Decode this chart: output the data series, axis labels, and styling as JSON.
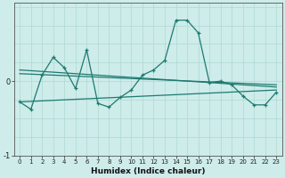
{
  "title": "",
  "xlabel": "Humidex (Indice chaleur)",
  "ylabel": "",
  "background_color": "#cdecea",
  "line_color": "#1e7a70",
  "grid_color": "#afd8d3",
  "x_values": [
    0,
    1,
    2,
    3,
    4,
    5,
    6,
    7,
    8,
    9,
    10,
    11,
    12,
    13,
    14,
    15,
    16,
    17,
    18,
    19,
    20,
    21,
    22,
    23
  ],
  "main_line": [
    -0.28,
    -0.38,
    0.08,
    0.32,
    0.18,
    -0.1,
    0.42,
    -0.3,
    -0.35,
    -0.22,
    -0.12,
    0.08,
    0.15,
    0.28,
    0.82,
    0.82,
    0.65,
    -0.02,
    0.0,
    -0.05,
    -0.2,
    -0.32,
    -0.32,
    -0.15
  ],
  "trend_line1": [
    [
      0,
      0.15
    ],
    [
      23,
      -0.08
    ]
  ],
  "trend_line2": [
    [
      0,
      0.1
    ],
    [
      23,
      -0.05
    ]
  ],
  "trend_line3": [
    [
      0,
      -0.28
    ],
    [
      23,
      -0.12
    ]
  ],
  "ylim": [
    -0.65,
    1.05
  ],
  "yticks": [
    -1,
    0
  ],
  "y0_label": "0",
  "y_minus1_label": "-1",
  "xlim": [
    -0.5,
    23.5
  ],
  "figsize": [
    3.2,
    2.0
  ],
  "dpi": 100
}
